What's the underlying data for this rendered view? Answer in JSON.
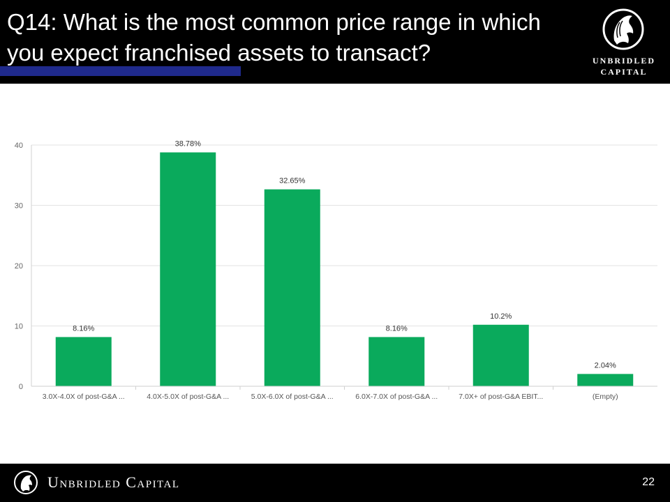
{
  "slide": {
    "title": "Q14: What is the most common price range in which you expect franchised assets to transact?",
    "logo_line1": "UNBRIDLED",
    "logo_line2": "CAPITAL",
    "footer_brand": "Unbridled Capital",
    "page_number": "22",
    "colors": {
      "header_bg": "#000000",
      "accent_bar": "#1f2a8c",
      "bar": "#0aaa5c"
    }
  },
  "chart_data": {
    "type": "bar",
    "title": "",
    "xlabel": "",
    "ylabel": "",
    "categories": [
      "3.0X-4.0X of post-G&A ...",
      "4.0X-5.0X of post-G&A ...",
      "5.0X-6.0X of post-G&A ...",
      "6.0X-7.0X of post-G&A ...",
      "7.0X+ of post-G&A EBIT...",
      "(Empty)"
    ],
    "values": [
      8.16,
      38.78,
      32.65,
      8.16,
      10.2,
      2.04
    ],
    "data_labels": [
      "8.16%",
      "38.78%",
      "32.65%",
      "8.16%",
      "10.2%",
      "2.04%"
    ],
    "yticks": [
      "0",
      "10",
      "20",
      "30",
      "40"
    ],
    "ylim": [
      0,
      40
    ],
    "grid": true
  }
}
